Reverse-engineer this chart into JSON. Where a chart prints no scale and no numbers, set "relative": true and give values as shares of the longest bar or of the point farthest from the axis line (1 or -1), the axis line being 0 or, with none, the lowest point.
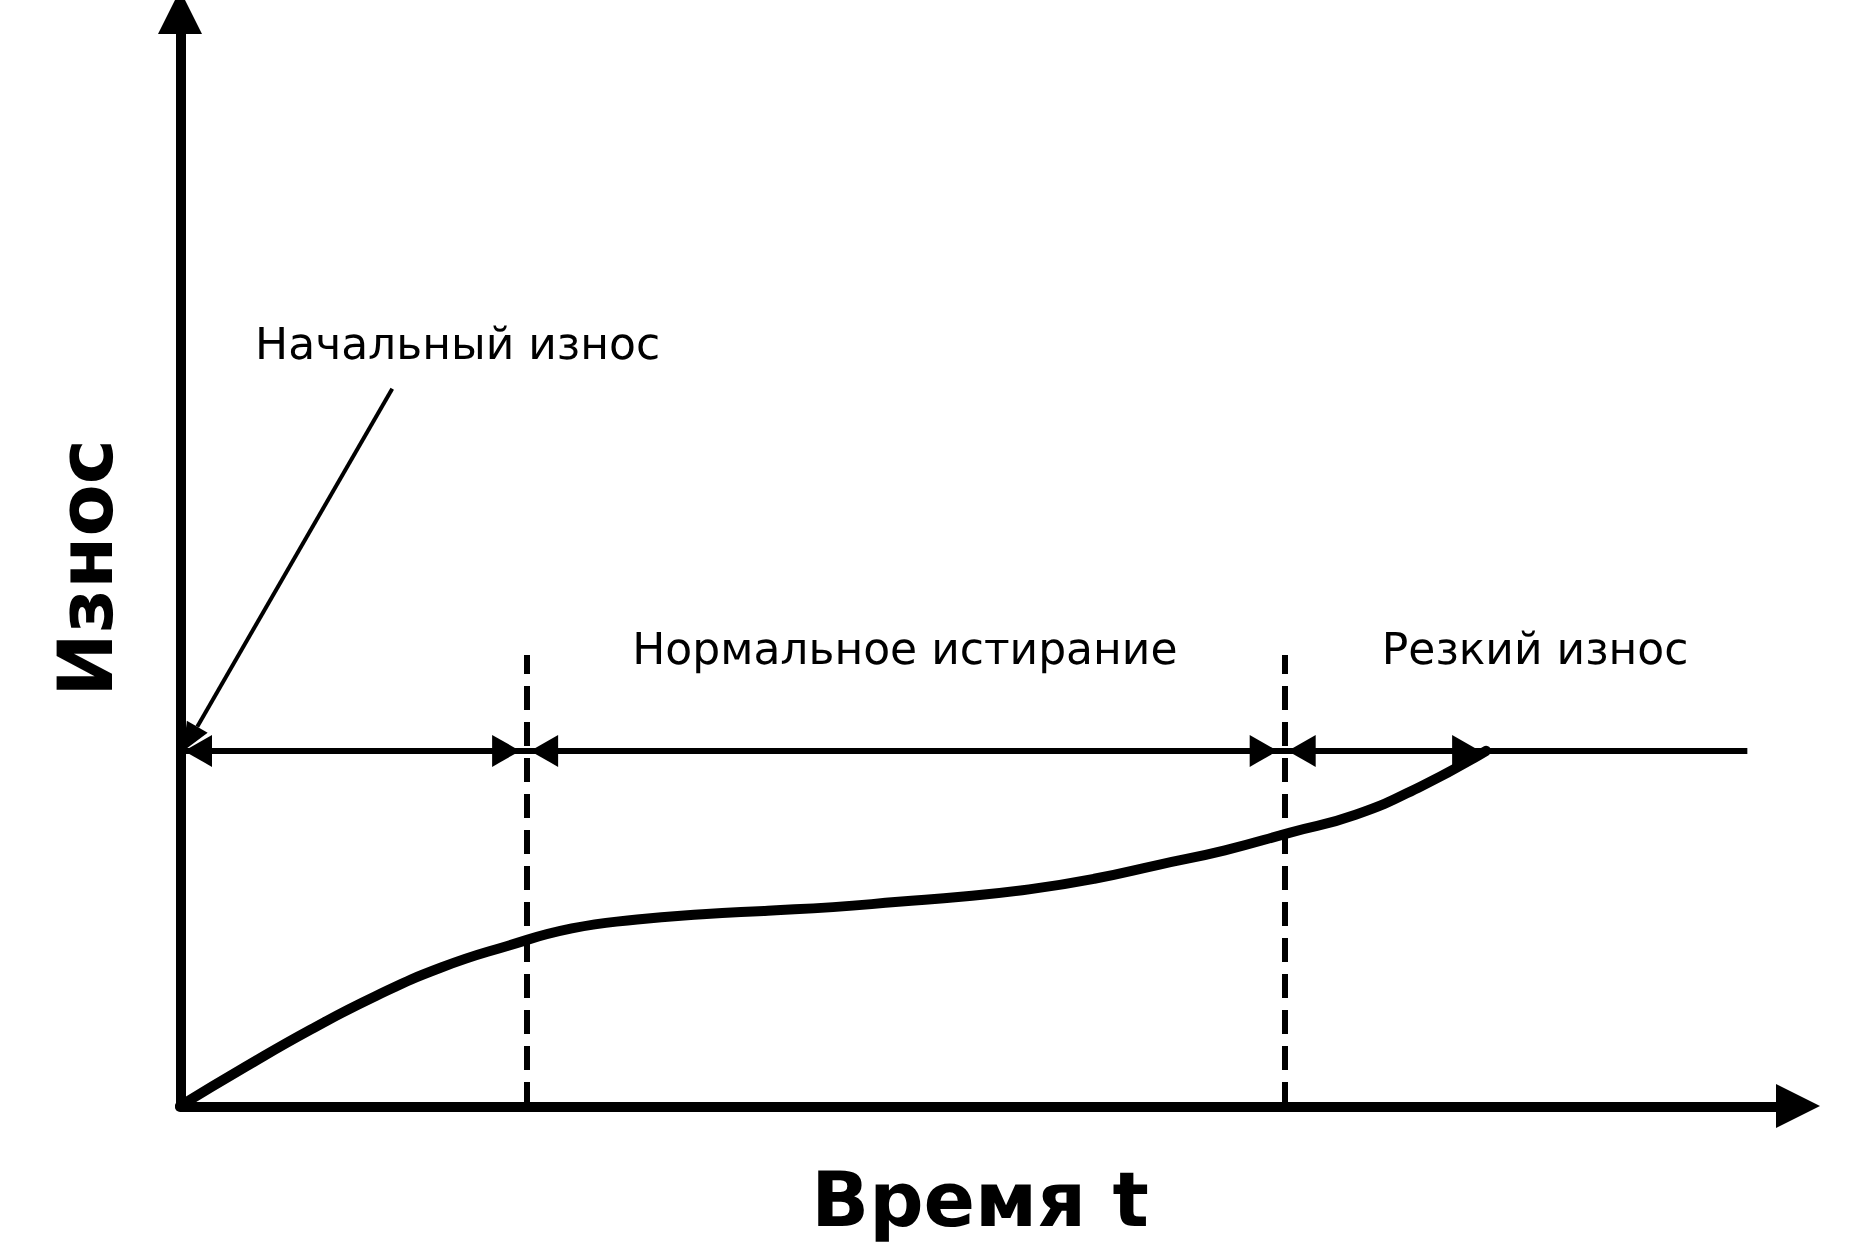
{
  "chart_data": {
    "type": "line",
    "relative": true,
    "xlabel": "Время t",
    "ylabel": "Износ",
    "categories": [
      null,
      null,
      null,
      null,
      null,
      null,
      null,
      null,
      null,
      null,
      null,
      null,
      null,
      null,
      null,
      null,
      null,
      null,
      null,
      null,
      null,
      null,
      null,
      null,
      null
    ],
    "series": [
      {
        "color": "#000000",
        "values": [
          0,
          0.11,
          0.215,
          0.31,
          0.39,
          0.45,
          0.5,
          0.525,
          0.54,
          0.55,
          0.56,
          0.575,
          0.59,
          0.61,
          0.64,
          0.68,
          0.72,
          0.77,
          0.82,
          0.9,
          1,
          null,
          null,
          null,
          null
        ]
      }
    ],
    "ref_lines": [
      {
        "axis": "y",
        "value": 1,
        "label": null,
        "color": "#000000",
        "line_style": "solid"
      }
    ],
    "annotations": [
      "Начальный износ",
      "Нормальное истирание",
      "Резкий износ"
    ],
    "grid": false
  }
}
